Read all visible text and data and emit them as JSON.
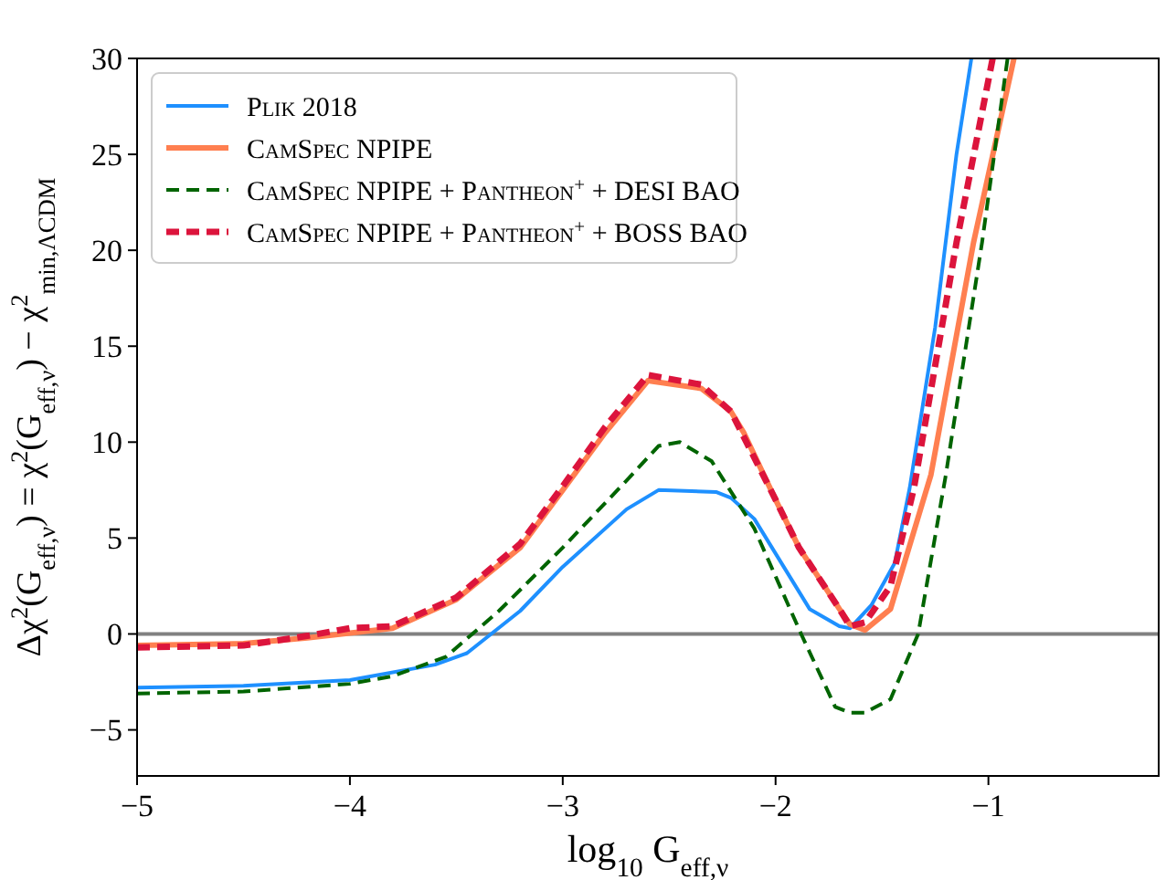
{
  "chart_data": {
    "type": "line",
    "xlabel": "log$_{10}$ G$_{eff,ν}$",
    "ylabel": "Δχ$^{2}$(G$_{eff,ν}$) = χ$^{2}$(G$_{eff,ν}$) − χ$^{2}$$_{min,ΛCDM}$",
    "xlim": [
      -5,
      -0.2
    ],
    "ylim": [
      -7.4,
      30
    ],
    "xticks": [
      -5,
      -4,
      -3,
      -2,
      -1
    ],
    "yticks": [
      -5,
      0,
      5,
      10,
      15,
      20,
      25,
      30
    ],
    "grid": false,
    "legend": "top left",
    "ref_lines": [
      {
        "axis": "y",
        "value": 0,
        "color": "#808080"
      }
    ],
    "series": [
      {
        "name": "Plik 2018",
        "color": "#1e90ff",
        "line_style": "solid",
        "x": [
          -5,
          -4.5,
          -4,
          -3.6,
          -3.45,
          -3.2,
          -3,
          -2.7,
          -2.55,
          -2.28,
          -2.21,
          -2.1,
          -1.84,
          -1.7,
          -1.65,
          -1.55,
          -1.44,
          -1.37,
          -1.25,
          -1.15,
          -1.08
        ],
        "values": [
          -2.8,
          -2.7,
          -2.4,
          -1.6,
          -1,
          1.2,
          3.5,
          6.5,
          7.5,
          7.4,
          7.1,
          6,
          1.3,
          0.4,
          0.3,
          1.5,
          3.7,
          7.6,
          16,
          25,
          30
        ]
      },
      {
        "name": "CamSpec NPIPE",
        "color": "#ff7f50",
        "line_style": "solid",
        "x": [
          -5,
          -4.5,
          -4.2,
          -3.8,
          -3.5,
          -3.2,
          -3,
          -2.8,
          -2.6,
          -2.35,
          -2.21,
          -2.15,
          -2,
          -1.89,
          -1.7,
          -1.65,
          -1.58,
          -1.46,
          -1.27,
          -1.07,
          -0.88
        ],
        "values": [
          -0.6,
          -0.5,
          -0.2,
          0.3,
          1.8,
          4.5,
          7.5,
          10.5,
          13.2,
          12.8,
          11.6,
          10.5,
          7,
          4.5,
          1.3,
          0.5,
          0.2,
          1.3,
          8.3,
          20.4,
          30
        ]
      },
      {
        "name": "CamSpec NPIPE + Pantheon$^{+}$ + DESI BAO",
        "color": "#006400",
        "line_style": "dashed",
        "x": [
          -5,
          -4.5,
          -4,
          -3.8,
          -3.55,
          -3.3,
          -3,
          -2.7,
          -2.55,
          -2.45,
          -2.3,
          -2.1,
          -1.88,
          -1.72,
          -1.65,
          -1.58,
          -1.46,
          -1.33,
          -1.2,
          -1.03,
          -0.91
        ],
        "values": [
          -3.1,
          -3,
          -2.6,
          -2.2,
          -1.2,
          1.2,
          4.5,
          8,
          9.8,
          10,
          9,
          5.5,
          0,
          -3.8,
          -4.1,
          -4.1,
          -3.4,
          0,
          8.3,
          20.4,
          30
        ]
      },
      {
        "name": "CamSpec NPIPE + Pantheon$^{+}$ + BOSS BAO",
        "color": "#dc143c",
        "line_style": "dashed",
        "x": [
          -5,
          -4.5,
          -4.2,
          -4,
          -3.8,
          -3.5,
          -3.2,
          -3,
          -2.8,
          -2.6,
          -2.35,
          -2.21,
          -2,
          -1.89,
          -1.7,
          -1.65,
          -1.58,
          -1.46,
          -1.35,
          -1.15,
          -0.98
        ],
        "values": [
          -0.7,
          -0.6,
          -0.1,
          0.3,
          0.4,
          1.9,
          4.7,
          7.7,
          10.8,
          13.5,
          13,
          11.6,
          7,
          4.5,
          1.3,
          0.4,
          0.6,
          2.5,
          7.6,
          20.4,
          30
        ]
      }
    ]
  }
}
